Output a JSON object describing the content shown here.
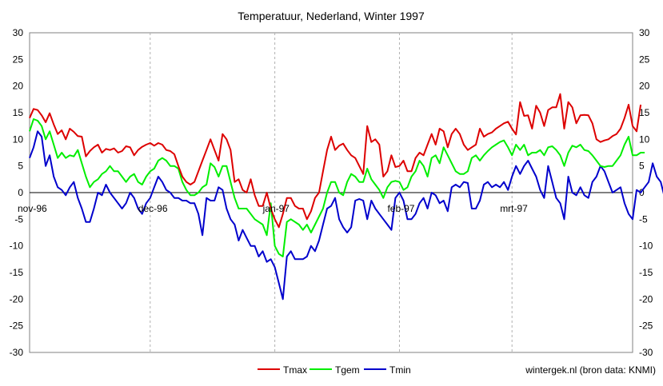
{
  "chart_data": {
    "type": "line",
    "title": "Temperatuur, Nederland, Winter 1997",
    "credit": "wintergek.nl (bron data: KNMI)",
    "ylim": [
      -30,
      30
    ],
    "yticks": [
      30,
      25,
      20,
      15,
      10,
      5,
      0,
      -5,
      -10,
      -15,
      -20,
      -25,
      -30
    ],
    "x_start_date": "1996-11-01",
    "x_end_date": "1997-03-31",
    "month_labels": [
      {
        "label": "nov-96",
        "date": "1996-11-01"
      },
      {
        "label": "dec-96",
        "date": "1996-12-01"
      },
      {
        "label": "jan-97",
        "date": "1997-01-01"
      },
      {
        "label": "feb-97",
        "date": "1997-02-01"
      },
      {
        "label": "mrt-97",
        "date": "1997-03-01"
      }
    ],
    "grid": {
      "vertical_dashed": true,
      "zero_line": true
    },
    "legend_position": "bottom-center",
    "series": [
      {
        "name": "Tmax",
        "color": "#dd0000",
        "values": [
          14,
          15.7,
          15.5,
          14.5,
          13.2,
          14.9,
          12.8,
          11,
          11.7,
          10,
          12,
          11.4,
          10.6,
          10.5,
          6.8,
          7.8,
          8.5,
          9,
          7.5,
          8.2,
          8,
          8.3,
          7.5,
          7.8,
          8.7,
          8.5,
          7,
          8,
          8.6,
          9,
          9.3,
          8.8,
          9.3,
          9,
          8,
          7.8,
          7.2,
          5,
          3,
          2,
          1.5,
          2,
          4,
          6,
          8,
          10,
          8,
          6,
          11,
          10,
          8,
          2,
          2.5,
          0.5,
          0,
          2.5,
          -0.5,
          -2.5,
          -2.5,
          0,
          -3,
          -5,
          -6.5,
          -4,
          -1,
          -1,
          -2.5,
          -3,
          -3,
          -5,
          -3.5,
          -1,
          0,
          4,
          8,
          10.5,
          8,
          8.8,
          9.2,
          8,
          7,
          6.5,
          5,
          3.5,
          12.5,
          9.5,
          10,
          9,
          3,
          4,
          7,
          4.8,
          5,
          6,
          4,
          4,
          6.5,
          7.5,
          7,
          9,
          11,
          9,
          12,
          11.5,
          8.5,
          11,
          12,
          11,
          9,
          8,
          8.5,
          9,
          12,
          10.5,
          11,
          11.3,
          12,
          12.5,
          13,
          13.3,
          12,
          10.9,
          17,
          14.4,
          14.5,
          12,
          16.3,
          15,
          12.5,
          15.5,
          16,
          16,
          18.5,
          12,
          17,
          16,
          13,
          14.5,
          14.6,
          14.5,
          13,
          10,
          9.5,
          9.8,
          10,
          10.6,
          11,
          12,
          14,
          16.5,
          12.5,
          11.5,
          16.5
        ]
      },
      {
        "name": "Tgem",
        "color": "#00ee00",
        "values": [
          11.5,
          13.8,
          13.5,
          12.5,
          10,
          11.5,
          9,
          6.5,
          7.5,
          6.5,
          7,
          6.8,
          8,
          5.5,
          3,
          1,
          2,
          2.5,
          3.5,
          4,
          5,
          4,
          4,
          3,
          2,
          3,
          3.5,
          2,
          1.5,
          3,
          4,
          4.5,
          6,
          6.5,
          6,
          5,
          5,
          4.5,
          2,
          0.5,
          -0.5,
          -0.5,
          0,
          1,
          1.5,
          5.5,
          4.8,
          3,
          5,
          5,
          2,
          -1,
          -3,
          -3,
          -3,
          -4,
          -5,
          -5.5,
          -6,
          -8,
          -2,
          -10,
          -11.5,
          -12,
          -5.5,
          -5,
          -5.5,
          -6,
          -7,
          -6,
          -7.5,
          -6,
          -4.5,
          -3,
          0,
          2,
          2,
          0,
          -0.5,
          2,
          3.5,
          3,
          2,
          2,
          4.5,
          2.5,
          1.5,
          0.5,
          -1,
          1,
          2,
          2.2,
          2,
          0.5,
          1,
          3,
          4,
          6,
          5,
          3,
          6.5,
          7,
          5.5,
          8.5,
          7,
          5.5,
          4,
          3.5,
          3.5,
          4,
          6.5,
          7,
          6,
          7,
          7.8,
          8.5,
          9,
          9.5,
          9.8,
          8.5,
          7,
          9,
          8,
          9,
          7,
          7.5,
          7.5,
          8,
          7,
          8.5,
          8.7,
          8,
          7,
          5,
          7.5,
          8.8,
          8.5,
          9,
          8,
          7.8,
          7,
          6,
          5,
          4.8,
          5,
          5,
          6,
          7,
          9,
          10.5,
          7,
          7,
          7.5,
          7.5
        ]
      },
      {
        "name": "Tmin",
        "color": "#0000cc",
        "values": [
          6.5,
          8.5,
          11.5,
          10.5,
          5,
          7,
          3,
          1,
          0.5,
          -0.5,
          1,
          2,
          -1,
          -3,
          -5.5,
          -5.5,
          -3,
          0,
          -0.5,
          1.5,
          0,
          -1,
          -2,
          -3,
          -2,
          0,
          -1,
          -3,
          -4,
          -2,
          -1,
          1,
          3,
          2,
          0.5,
          0,
          -1,
          -1,
          -1.5,
          -1.5,
          -2,
          -2,
          -4,
          -8,
          -1,
          -1.5,
          -1.5,
          1,
          0.5,
          -3,
          -5,
          -6,
          -9,
          -7,
          -8.5,
          -10,
          -10,
          -12,
          -11,
          -13,
          -12.5,
          -14,
          -17,
          -20,
          -12,
          -11,
          -12.5,
          -12.5,
          -12.5,
          -12,
          -10,
          -11,
          -9,
          -6,
          -3,
          -2.5,
          -1,
          -5,
          -6.5,
          -7.5,
          -6.5,
          -1.5,
          -1.2,
          -1.5,
          -5,
          -1.5,
          -3,
          -4,
          -5,
          -6,
          -7,
          -1,
          0,
          -1.5,
          -5,
          -5,
          -4,
          -2,
          -1,
          -3,
          0,
          -0.5,
          -2,
          -1.5,
          -3.5,
          1,
          1.5,
          1,
          2,
          1.8,
          -3,
          -3,
          -1.5,
          1.5,
          2,
          1,
          1.5,
          1,
          2,
          0.5,
          3,
          5,
          3.5,
          5,
          6,
          4.5,
          3,
          0.5,
          -1,
          5,
          2,
          -1,
          -2,
          -5,
          3,
          0,
          -0.5,
          1,
          -0.5,
          -1,
          2,
          3,
          5,
          4,
          2,
          0,
          0.5,
          1,
          -2,
          -4,
          -5,
          0.5,
          0,
          1,
          2,
          5.5,
          3,
          2,
          -1
        ]
      }
    ]
  }
}
